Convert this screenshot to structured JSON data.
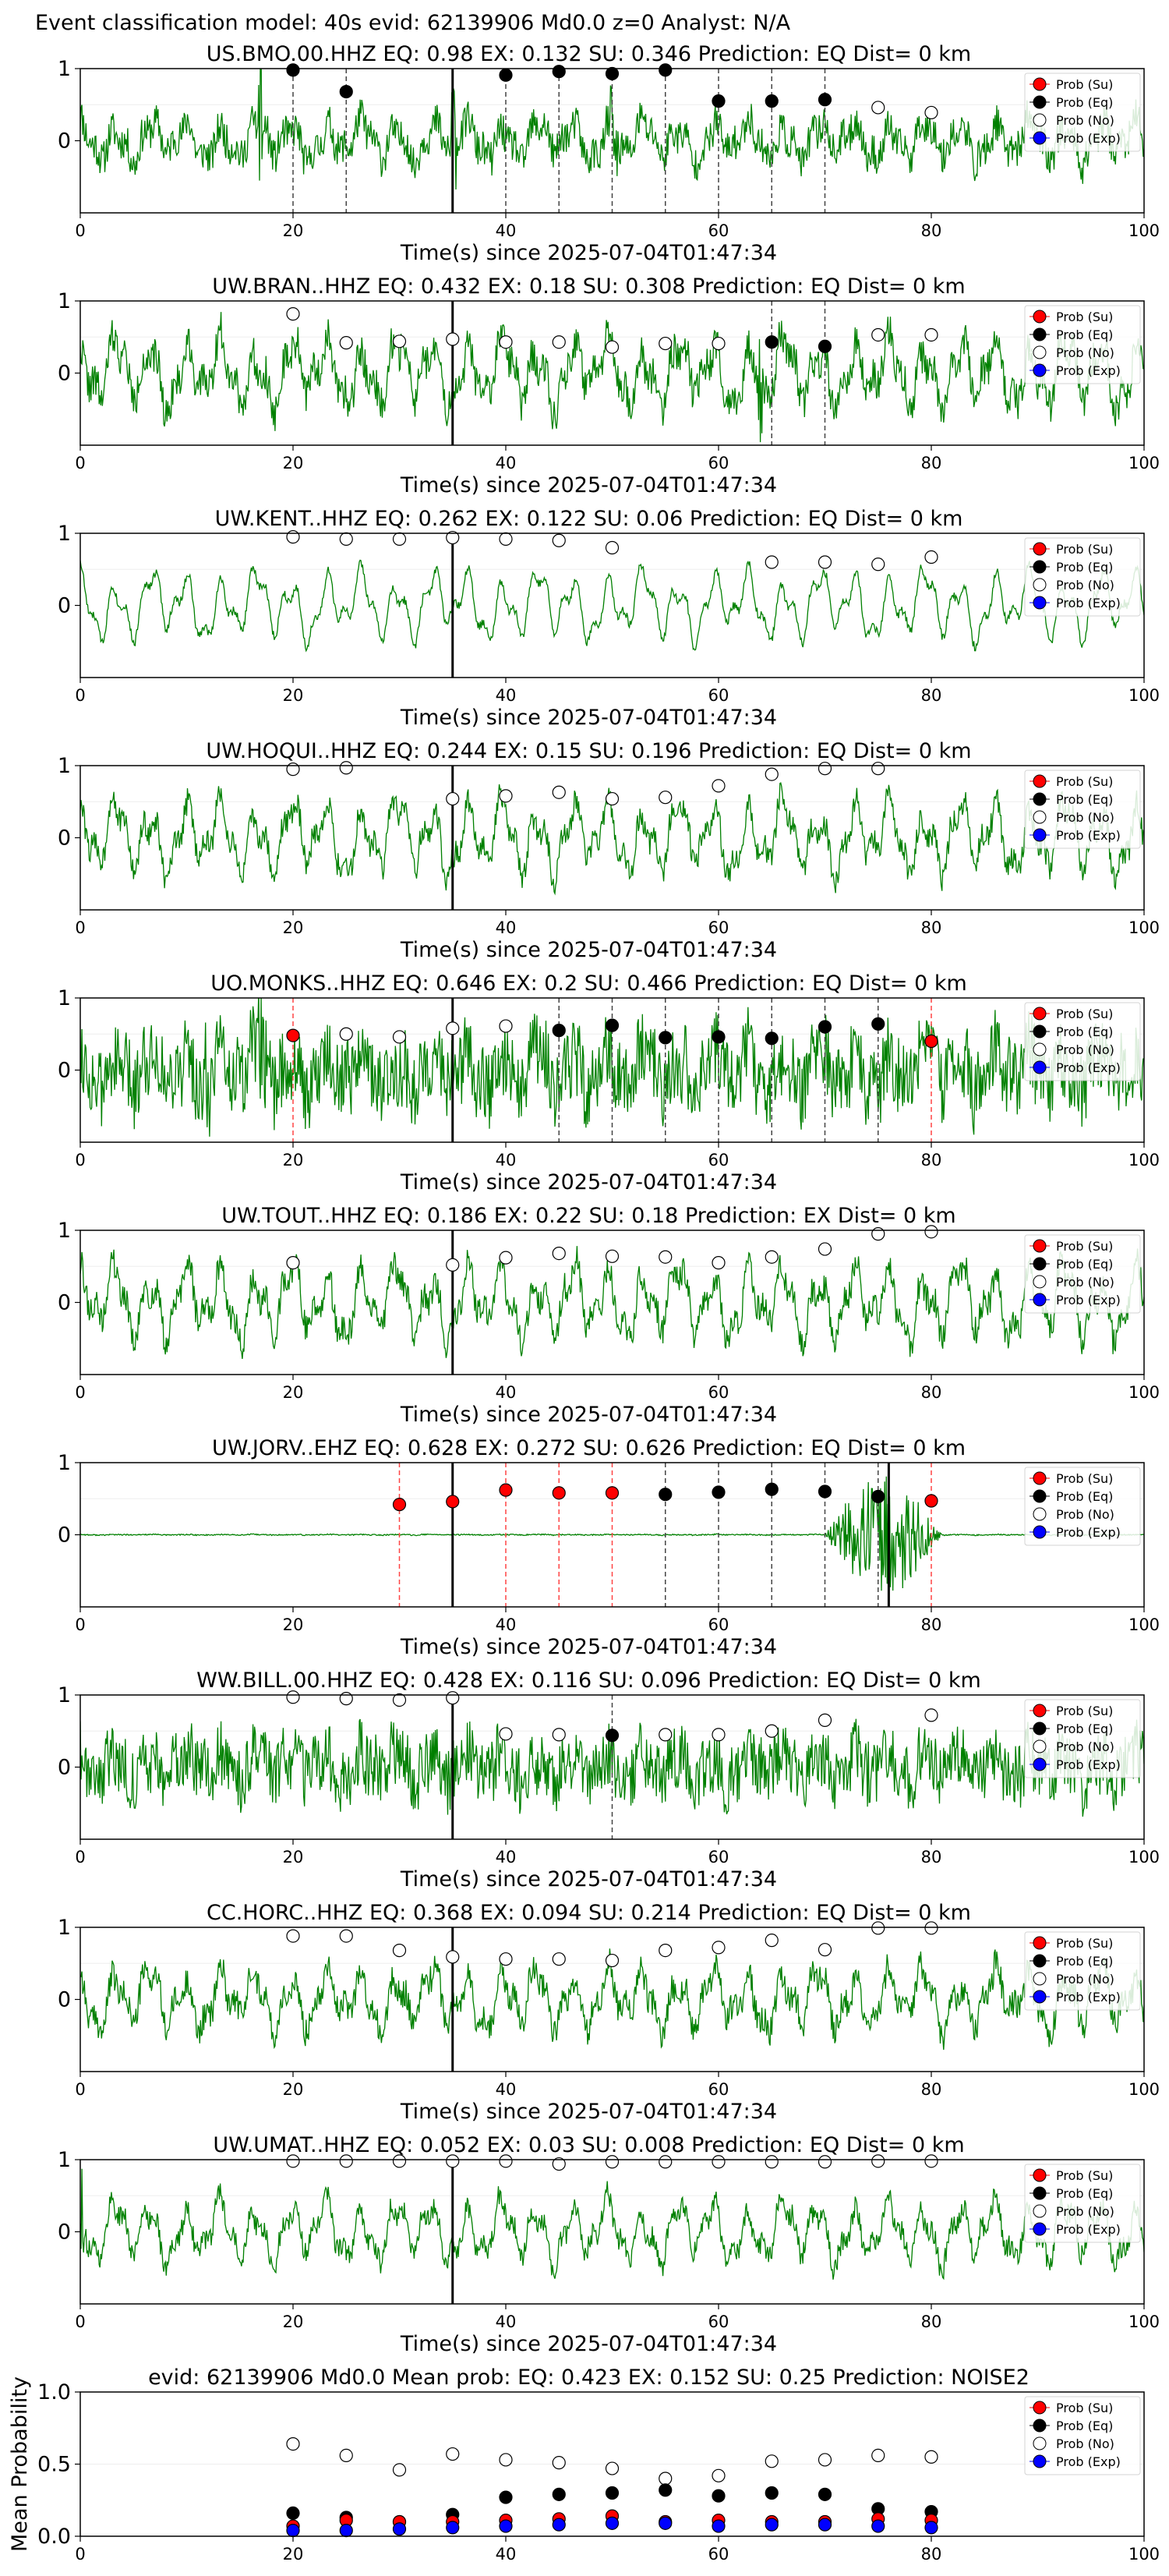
{
  "header": "Event classification model: 40s evid: 62139906 Md0.0 z=0 Analyst: N/A",
  "xlabel": "Time(s) since 2025-07-04T01:47:34",
  "legend": [
    "Prob (Su)",
    "Prob (Eq)",
    "Prob (No)",
    "Prob (Exp)"
  ],
  "colors": {
    "su": "#ff0000",
    "eq": "#000000",
    "no": "#ffffff",
    "exp": "#0000ff",
    "trace": "#008000",
    "arrival": "#000000"
  },
  "chart_data": [
    {
      "type": "line",
      "title": "US.BMO.00.HHZ   EQ: 0.98  EX: 0.132  SU: 0.346   Prediction: EQ    Dist= 0 km",
      "xlim": [
        0,
        100
      ],
      "ylim": [
        -1,
        1
      ],
      "xticks": [
        0,
        20,
        40,
        60,
        80,
        100
      ],
      "yticks": [
        0,
        1
      ],
      "arrival": 35,
      "trace": {
        "seed": 11,
        "amp": 0.32,
        "noise": 0.25,
        "spikes": [
          [
            17,
            0.9
          ],
          [
            35,
            1.0
          ],
          [
            50,
            0.9
          ]
        ]
      },
      "points": [
        {
          "t": 20,
          "v": 0.98,
          "c": "eq"
        },
        {
          "t": 25,
          "v": 0.68,
          "c": "eq"
        },
        {
          "t": 40,
          "v": 0.91,
          "c": "eq"
        },
        {
          "t": 45,
          "v": 0.96,
          "c": "eq"
        },
        {
          "t": 50,
          "v": 0.93,
          "c": "eq"
        },
        {
          "t": 55,
          "v": 0.98,
          "c": "eq"
        },
        {
          "t": 60,
          "v": 0.55,
          "c": "eq"
        },
        {
          "t": 65,
          "v": 0.55,
          "c": "eq"
        },
        {
          "t": 70,
          "v": 0.57,
          "c": "eq"
        },
        {
          "t": 75,
          "v": 0.46,
          "c": "no"
        },
        {
          "t": 80,
          "v": 0.39,
          "c": "no"
        }
      ]
    },
    {
      "type": "line",
      "title": "UW.BRAN..HHZ   EQ: 0.432  EX: 0.18  SU: 0.308   Prediction: EQ    Dist= 0 km",
      "xlim": [
        0,
        100
      ],
      "ylim": [
        -1,
        1
      ],
      "xticks": [
        0,
        20,
        40,
        60,
        80,
        100
      ],
      "yticks": [
        0,
        1
      ],
      "arrival": 35,
      "trace": {
        "seed": 22,
        "amp": 0.55,
        "noise": 0.25,
        "spikes": [
          [
            64,
            1.0
          ]
        ]
      },
      "points": [
        {
          "t": 20,
          "v": 0.82,
          "c": "no"
        },
        {
          "t": 25,
          "v": 0.42,
          "c": "no"
        },
        {
          "t": 30,
          "v": 0.44,
          "c": "no"
        },
        {
          "t": 35,
          "v": 0.47,
          "c": "no"
        },
        {
          "t": 40,
          "v": 0.43,
          "c": "no"
        },
        {
          "t": 45,
          "v": 0.43,
          "c": "no"
        },
        {
          "t": 50,
          "v": 0.36,
          "c": "no"
        },
        {
          "t": 55,
          "v": 0.41,
          "c": "no"
        },
        {
          "t": 60,
          "v": 0.41,
          "c": "no"
        },
        {
          "t": 65,
          "v": 0.43,
          "c": "eq"
        },
        {
          "t": 70,
          "v": 0.37,
          "c": "eq"
        },
        {
          "t": 75,
          "v": 0.53,
          "c": "no"
        },
        {
          "t": 80,
          "v": 0.53,
          "c": "no"
        }
      ]
    },
    {
      "type": "line",
      "title": "UW.KENT..HHZ   EQ: 0.262  EX: 0.122  SU: 0.06   Prediction: EQ    Dist= 0 km",
      "xlim": [
        0,
        100
      ],
      "ylim": [
        -1,
        1
      ],
      "xticks": [
        0,
        20,
        40,
        60,
        80,
        100
      ],
      "yticks": [
        0,
        1
      ],
      "arrival": 35,
      "trace": {
        "seed": 33,
        "amp": 0.55,
        "noise": 0.06,
        "spikes": []
      },
      "points": [
        {
          "t": 20,
          "v": 0.95,
          "c": "no"
        },
        {
          "t": 25,
          "v": 0.92,
          "c": "no"
        },
        {
          "t": 30,
          "v": 0.92,
          "c": "no"
        },
        {
          "t": 35,
          "v": 0.94,
          "c": "no"
        },
        {
          "t": 40,
          "v": 0.92,
          "c": "no"
        },
        {
          "t": 45,
          "v": 0.9,
          "c": "no"
        },
        {
          "t": 50,
          "v": 0.8,
          "c": "no"
        },
        {
          "t": 65,
          "v": 0.6,
          "c": "no"
        },
        {
          "t": 70,
          "v": 0.6,
          "c": "no"
        },
        {
          "t": 75,
          "v": 0.57,
          "c": "no"
        },
        {
          "t": 80,
          "v": 0.67,
          "c": "no"
        }
      ]
    },
    {
      "type": "line",
      "title": "UW.HOQUI..HHZ   EQ: 0.244  EX: 0.15  SU: 0.196   Prediction: EQ    Dist= 0 km",
      "xlim": [
        0,
        100
      ],
      "ylim": [
        -1,
        1
      ],
      "xticks": [
        0,
        20,
        40,
        60,
        80,
        100
      ],
      "yticks": [
        0,
        1
      ],
      "arrival": 35,
      "trace": {
        "seed": 44,
        "amp": 0.6,
        "noise": 0.18,
        "spikes": []
      },
      "points": [
        {
          "t": 20,
          "v": 0.95,
          "c": "no"
        },
        {
          "t": 25,
          "v": 0.97,
          "c": "no"
        },
        {
          "t": 35,
          "v": 0.54,
          "c": "no"
        },
        {
          "t": 40,
          "v": 0.58,
          "c": "no"
        },
        {
          "t": 45,
          "v": 0.63,
          "c": "no"
        },
        {
          "t": 50,
          "v": 0.54,
          "c": "no"
        },
        {
          "t": 55,
          "v": 0.56,
          "c": "no"
        },
        {
          "t": 60,
          "v": 0.72,
          "c": "no"
        },
        {
          "t": 65,
          "v": 0.88,
          "c": "no"
        },
        {
          "t": 70,
          "v": 0.96,
          "c": "no"
        },
        {
          "t": 75,
          "v": 0.96,
          "c": "no"
        }
      ]
    },
    {
      "type": "line",
      "title": "UO.MONKS..HHZ   EQ: 0.646  EX: 0.2  SU: 0.466   Prediction: EQ    Dist= 0 km",
      "xlim": [
        0,
        100
      ],
      "ylim": [
        -1,
        1
      ],
      "xticks": [
        0,
        20,
        40,
        60,
        80,
        100
      ],
      "yticks": [
        0,
        1
      ],
      "arrival": 35,
      "trace": {
        "seed": 55,
        "amp": 0.35,
        "noise": 0.55,
        "spikes": [
          [
            12,
            1.0
          ],
          [
            17,
            1.0
          ]
        ]
      },
      "points": [
        {
          "t": 20,
          "v": 0.48,
          "c": "su"
        },
        {
          "t": 25,
          "v": 0.5,
          "c": "no"
        },
        {
          "t": 30,
          "v": 0.46,
          "c": "no"
        },
        {
          "t": 35,
          "v": 0.58,
          "c": "no"
        },
        {
          "t": 40,
          "v": 0.61,
          "c": "no"
        },
        {
          "t": 45,
          "v": 0.55,
          "c": "eq"
        },
        {
          "t": 50,
          "v": 0.62,
          "c": "eq"
        },
        {
          "t": 55,
          "v": 0.45,
          "c": "eq"
        },
        {
          "t": 60,
          "v": 0.46,
          "c": "eq"
        },
        {
          "t": 65,
          "v": 0.44,
          "c": "eq"
        },
        {
          "t": 70,
          "v": 0.6,
          "c": "eq"
        },
        {
          "t": 75,
          "v": 0.64,
          "c": "eq"
        },
        {
          "t": 80,
          "v": 0.4,
          "c": "su"
        }
      ]
    },
    {
      "type": "line",
      "title": "UW.TOUT..HHZ   EQ: 0.186  EX: 0.22  SU: 0.18   Prediction: EX    Dist= 0 km",
      "xlim": [
        0,
        100
      ],
      "ylim": [
        -1,
        1
      ],
      "xticks": [
        0,
        20,
        40,
        60,
        80,
        100
      ],
      "yticks": [
        0,
        1
      ],
      "arrival": 35,
      "trace": {
        "seed": 66,
        "amp": 0.6,
        "noise": 0.2,
        "spikes": []
      },
      "points": [
        {
          "t": 20,
          "v": 0.55,
          "c": "no"
        },
        {
          "t": 35,
          "v": 0.52,
          "c": "no"
        },
        {
          "t": 40,
          "v": 0.62,
          "c": "no"
        },
        {
          "t": 45,
          "v": 0.68,
          "c": "no"
        },
        {
          "t": 50,
          "v": 0.64,
          "c": "no"
        },
        {
          "t": 55,
          "v": 0.63,
          "c": "no"
        },
        {
          "t": 60,
          "v": 0.55,
          "c": "no"
        },
        {
          "t": 65,
          "v": 0.63,
          "c": "no"
        },
        {
          "t": 70,
          "v": 0.74,
          "c": "no"
        },
        {
          "t": 75,
          "v": 0.95,
          "c": "no"
        },
        {
          "t": 80,
          "v": 0.98,
          "c": "no"
        }
      ]
    },
    {
      "type": "line",
      "title": "UW.JORV..EHZ   EQ: 0.628  EX: 0.272  SU: 0.626   Prediction: EQ    Dist= 0 km",
      "xlim": [
        0,
        100
      ],
      "ylim": [
        -1,
        1
      ],
      "xticks": [
        0,
        20,
        40,
        60,
        80,
        100
      ],
      "yticks": [
        0,
        1
      ],
      "arrival": 35,
      "arrival2": 76,
      "trace": {
        "seed": 77,
        "amp": 0.005,
        "noise": 0.008,
        "spikes": [],
        "burst": [
          70,
          81,
          0.85
        ]
      },
      "points": [
        {
          "t": 30,
          "v": 0.42,
          "c": "su"
        },
        {
          "t": 35,
          "v": 0.46,
          "c": "su"
        },
        {
          "t": 40,
          "v": 0.62,
          "c": "su"
        },
        {
          "t": 45,
          "v": 0.58,
          "c": "su"
        },
        {
          "t": 50,
          "v": 0.58,
          "c": "su"
        },
        {
          "t": 55,
          "v": 0.56,
          "c": "eq"
        },
        {
          "t": 60,
          "v": 0.59,
          "c": "eq"
        },
        {
          "t": 65,
          "v": 0.63,
          "c": "eq"
        },
        {
          "t": 70,
          "v": 0.6,
          "c": "eq"
        },
        {
          "t": 75,
          "v": 0.53,
          "c": "eq"
        },
        {
          "t": 80,
          "v": 0.47,
          "c": "su"
        }
      ]
    },
    {
      "type": "line",
      "title": "WW.BILL.00.HHZ   EQ: 0.428  EX: 0.116  SU: 0.096   Prediction: EQ    Dist= 0 km",
      "xlim": [
        0,
        100
      ],
      "ylim": [
        -1,
        1
      ],
      "xticks": [
        0,
        20,
        40,
        60,
        80,
        100
      ],
      "yticks": [
        0,
        1
      ],
      "arrival": 35,
      "trace": {
        "seed": 88,
        "amp": 0.25,
        "noise": 0.45,
        "spikes": []
      },
      "points": [
        {
          "t": 20,
          "v": 0.97,
          "c": "no"
        },
        {
          "t": 25,
          "v": 0.95,
          "c": "no"
        },
        {
          "t": 30,
          "v": 0.93,
          "c": "no"
        },
        {
          "t": 35,
          "v": 0.96,
          "c": "no"
        },
        {
          "t": 40,
          "v": 0.46,
          "c": "no"
        },
        {
          "t": 45,
          "v": 0.45,
          "c": "no"
        },
        {
          "t": 50,
          "v": 0.44,
          "c": "eq"
        },
        {
          "t": 55,
          "v": 0.45,
          "c": "no"
        },
        {
          "t": 60,
          "v": 0.45,
          "c": "no"
        },
        {
          "t": 65,
          "v": 0.5,
          "c": "no"
        },
        {
          "t": 70,
          "v": 0.65,
          "c": "no"
        },
        {
          "t": 80,
          "v": 0.72,
          "c": "no"
        }
      ]
    },
    {
      "type": "line",
      "title": "CC.HORC..HHZ   EQ: 0.368  EX: 0.094  SU: 0.214   Prediction: EQ    Dist= 0 km",
      "xlim": [
        0,
        100
      ],
      "ylim": [
        -1,
        1
      ],
      "xticks": [
        0,
        20,
        40,
        60,
        80,
        100
      ],
      "yticks": [
        0,
        1
      ],
      "arrival": 35,
      "trace": {
        "seed": 99,
        "amp": 0.5,
        "noise": 0.2,
        "spikes": []
      },
      "points": [
        {
          "t": 20,
          "v": 0.88,
          "c": "no"
        },
        {
          "t": 25,
          "v": 0.88,
          "c": "no"
        },
        {
          "t": 30,
          "v": 0.68,
          "c": "no"
        },
        {
          "t": 35,
          "v": 0.59,
          "c": "no"
        },
        {
          "t": 40,
          "v": 0.56,
          "c": "no"
        },
        {
          "t": 45,
          "v": 0.56,
          "c": "no"
        },
        {
          "t": 50,
          "v": 0.54,
          "c": "no"
        },
        {
          "t": 55,
          "v": 0.68,
          "c": "no"
        },
        {
          "t": 60,
          "v": 0.72,
          "c": "no"
        },
        {
          "t": 65,
          "v": 0.82,
          "c": "no"
        },
        {
          "t": 70,
          "v": 0.69,
          "c": "no"
        },
        {
          "t": 75,
          "v": 0.99,
          "c": "no"
        },
        {
          "t": 80,
          "v": 0.99,
          "c": "no"
        }
      ]
    },
    {
      "type": "line",
      "title": "UW.UMAT..HHZ   EQ: 0.052  EX: 0.03  SU: 0.008   Prediction: EQ    Dist= 0 km",
      "xlim": [
        0,
        100
      ],
      "ylim": [
        -1,
        1
      ],
      "xticks": [
        0,
        20,
        40,
        60,
        80,
        100
      ],
      "yticks": [
        0,
        1
      ],
      "arrival": 35,
      "trace": {
        "seed": 111,
        "amp": 0.5,
        "noise": 0.15,
        "spikes": [
          [
            0,
            1.0
          ]
        ]
      },
      "points": [
        {
          "t": 20,
          "v": 0.98,
          "c": "no"
        },
        {
          "t": 25,
          "v": 0.98,
          "c": "no"
        },
        {
          "t": 30,
          "v": 0.98,
          "c": "no"
        },
        {
          "t": 35,
          "v": 0.98,
          "c": "no"
        },
        {
          "t": 40,
          "v": 0.98,
          "c": "no"
        },
        {
          "t": 45,
          "v": 0.94,
          "c": "no"
        },
        {
          "t": 50,
          "v": 0.97,
          "c": "no"
        },
        {
          "t": 55,
          "v": 0.97,
          "c": "no"
        },
        {
          "t": 60,
          "v": 0.97,
          "c": "no"
        },
        {
          "t": 65,
          "v": 0.97,
          "c": "no"
        },
        {
          "t": 70,
          "v": 0.97,
          "c": "no"
        },
        {
          "t": 75,
          "v": 0.98,
          "c": "no"
        },
        {
          "t": 80,
          "v": 0.98,
          "c": "no"
        }
      ]
    },
    {
      "type": "scatter",
      "title": "evid: 62139906  Md0.0   Mean prob:   EQ: 0.423  EX: 0.152  SU: 0.25   Prediction: NOISE2",
      "ylabel": "Mean Probability",
      "xlim": [
        0,
        100
      ],
      "ylim": [
        0,
        1
      ],
      "xticks": [
        0,
        20,
        40,
        60,
        80,
        100
      ],
      "yticks": [
        0.0,
        0.5,
        1.0
      ],
      "x": [
        20,
        25,
        30,
        35,
        40,
        45,
        50,
        55,
        60,
        65,
        70,
        75,
        80
      ],
      "series": [
        {
          "key": "no",
          "values": [
            0.64,
            0.56,
            0.46,
            0.57,
            0.53,
            0.51,
            0.47,
            0.4,
            0.42,
            0.52,
            0.53,
            0.56,
            0.55
          ]
        },
        {
          "key": "eq",
          "values": [
            0.16,
            0.13,
            0.1,
            0.15,
            0.27,
            0.29,
            0.3,
            0.32,
            0.28,
            0.3,
            0.29,
            0.19,
            0.17
          ]
        },
        {
          "key": "su",
          "values": [
            0.07,
            0.11,
            0.1,
            0.1,
            0.11,
            0.12,
            0.14,
            0.1,
            0.11,
            0.1,
            0.1,
            0.12,
            0.11
          ]
        },
        {
          "key": "exp",
          "values": [
            0.04,
            0.04,
            0.05,
            0.06,
            0.07,
            0.08,
            0.09,
            0.09,
            0.07,
            0.08,
            0.08,
            0.07,
            0.06
          ]
        }
      ]
    }
  ]
}
